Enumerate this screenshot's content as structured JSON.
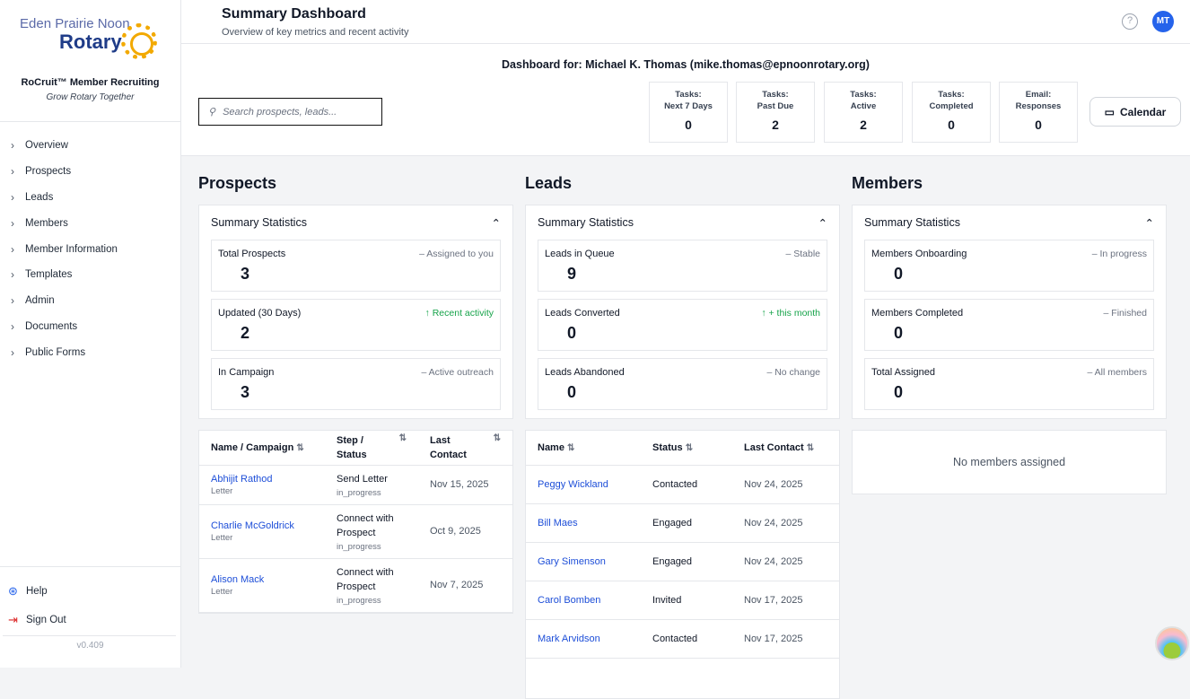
{
  "sidebar": {
    "logo_top": "Eden Prairie Noon",
    "logo_main": "Rotary",
    "app_name": "RoCruit™ Member Recruiting",
    "tagline": "Grow Rotary Together",
    "items": [
      {
        "label": "Overview"
      },
      {
        "label": "Prospects"
      },
      {
        "label": "Leads"
      },
      {
        "label": "Members"
      },
      {
        "label": "Member Information"
      },
      {
        "label": "Templates"
      },
      {
        "label": "Admin"
      },
      {
        "label": "Documents"
      },
      {
        "label": "Public Forms"
      }
    ],
    "help": "Help",
    "sign_out": "Sign Out",
    "version": "v0.409"
  },
  "header": {
    "title": "Summary Dashboard",
    "subtitle": "Overview of key metrics and recent activity",
    "avatar": "MT"
  },
  "topbar": {
    "dashboard_for": "Dashboard for: Michael K. Thomas (mike.thomas@epnoonrotary.org)",
    "search_placeholder": "Search prospects, leads...",
    "tiles": [
      {
        "line1": "Tasks:",
        "line2": "Next 7 Days",
        "value": "0"
      },
      {
        "line1": "Tasks:",
        "line2": "Past Due",
        "value": "2"
      },
      {
        "line1": "Tasks:",
        "line2": "Active",
        "value": "2"
      },
      {
        "line1": "Tasks:",
        "line2": "Completed",
        "value": "0"
      },
      {
        "line1": "Email:",
        "line2": "Responses",
        "value": "0"
      }
    ],
    "calendar": "Calendar"
  },
  "prospects": {
    "title": "Prospects",
    "card_title": "Summary Statistics",
    "stats": [
      {
        "label": "Total Prospects",
        "trend": "– Assigned to you",
        "value": "3"
      },
      {
        "label": "Updated (30 Days)",
        "trend": "↑ Recent activity",
        "value": "2"
      },
      {
        "label": "In Campaign",
        "trend": "– Active outreach",
        "value": "3"
      }
    ],
    "columns": [
      "Name / Campaign",
      "Step / Status",
      "Last Contact"
    ],
    "rows": [
      {
        "name": "Abhijit Rathod",
        "campaign": "Letter",
        "step": "Send Letter",
        "status": "in_progress",
        "date": "Nov 15, 2025"
      },
      {
        "name": "Charlie McGoldrick",
        "campaign": "Letter",
        "step": "Connect with Prospect",
        "status": "in_progress",
        "date": "Oct 9, 2025"
      },
      {
        "name": "Alison Mack",
        "campaign": "Letter",
        "step": "Connect with Prospect",
        "status": "in_progress",
        "date": "Nov 7, 2025"
      }
    ]
  },
  "leads": {
    "title": "Leads",
    "card_title": "Summary Statistics",
    "stats": [
      {
        "label": "Leads in Queue",
        "trend": "– Stable",
        "value": "9"
      },
      {
        "label": "Leads Converted",
        "trend": "↑ + this month",
        "value": "0"
      },
      {
        "label": "Leads Abandoned",
        "trend": "– No change",
        "value": "0"
      }
    ],
    "columns": [
      "Name",
      "Status",
      "Last Contact"
    ],
    "rows": [
      {
        "name": "Peggy Wickland",
        "status": "Contacted",
        "date": "Nov 24, 2025"
      },
      {
        "name": "Bill Maes",
        "status": "Engaged",
        "date": "Nov 24, 2025"
      },
      {
        "name": "Gary Simenson",
        "status": "Engaged",
        "date": "Nov 24, 2025"
      },
      {
        "name": "Carol Bomben",
        "status": "Invited",
        "date": "Nov 17, 2025"
      },
      {
        "name": "Mark Arvidson",
        "status": "Contacted",
        "date": "Nov 17, 2025"
      }
    ]
  },
  "members": {
    "title": "Members",
    "card_title": "Summary Statistics",
    "stats": [
      {
        "label": "Members Onboarding",
        "trend": "– In progress",
        "value": "0"
      },
      {
        "label": "Members Completed",
        "trend": "– Finished",
        "value": "0"
      },
      {
        "label": "Total Assigned",
        "trend": "– All members",
        "value": "0"
      }
    ],
    "empty": "No members assigned"
  }
}
